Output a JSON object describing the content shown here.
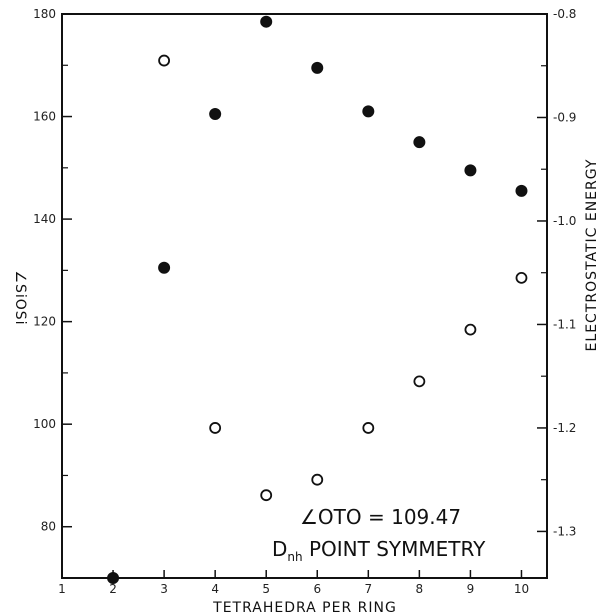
{
  "chart_data": {
    "type": "scatter",
    "title": "",
    "xlabel": "TETRAHEDRA PER RING",
    "ylabel_left": "∠SiOSi",
    "ylabel_right": "ELECTROSTATIC ENERGY",
    "xlim": [
      1,
      10.5
    ],
    "ylim_left": [
      70,
      180
    ],
    "ylim_right": [
      -1.345,
      -0.8
    ],
    "x_ticks": [
      1,
      2,
      3,
      4,
      5,
      6,
      7,
      8,
      9,
      10
    ],
    "y_left_ticks": [
      80,
      100,
      120,
      140,
      160,
      180
    ],
    "y_right_ticks": [
      -0.8,
      -0.9,
      -1.0,
      -1.1,
      -1.2,
      -1.3
    ],
    "y_right_tick_labels": [
      "-0.8",
      "-0.9",
      "-1.0",
      "-1.1",
      "-1.2",
      "-1.3"
    ],
    "series": [
      {
        "marker": "filled-circle",
        "axis": "left",
        "x": [
          2,
          3,
          4,
          5,
          6,
          7,
          8,
          9,
          10
        ],
        "y": [
          70,
          130.5,
          160.5,
          178.5,
          169.5,
          161,
          155,
          149.5,
          145.5
        ]
      },
      {
        "marker": "open-circle",
        "axis": "right",
        "x": [
          3,
          4,
          5,
          6,
          7,
          8,
          9,
          10
        ],
        "y": [
          -0.845,
          -1.2,
          -1.265,
          -1.25,
          -1.2,
          -1.155,
          -1.105,
          -1.055
        ]
      }
    ],
    "annotations": {
      "line1": "∠OTO = 109.47",
      "line2_main": "D",
      "line2_sub": "nh",
      "line2_rest": " POINT SYMMETRY"
    },
    "grid": false,
    "legend": "none"
  }
}
